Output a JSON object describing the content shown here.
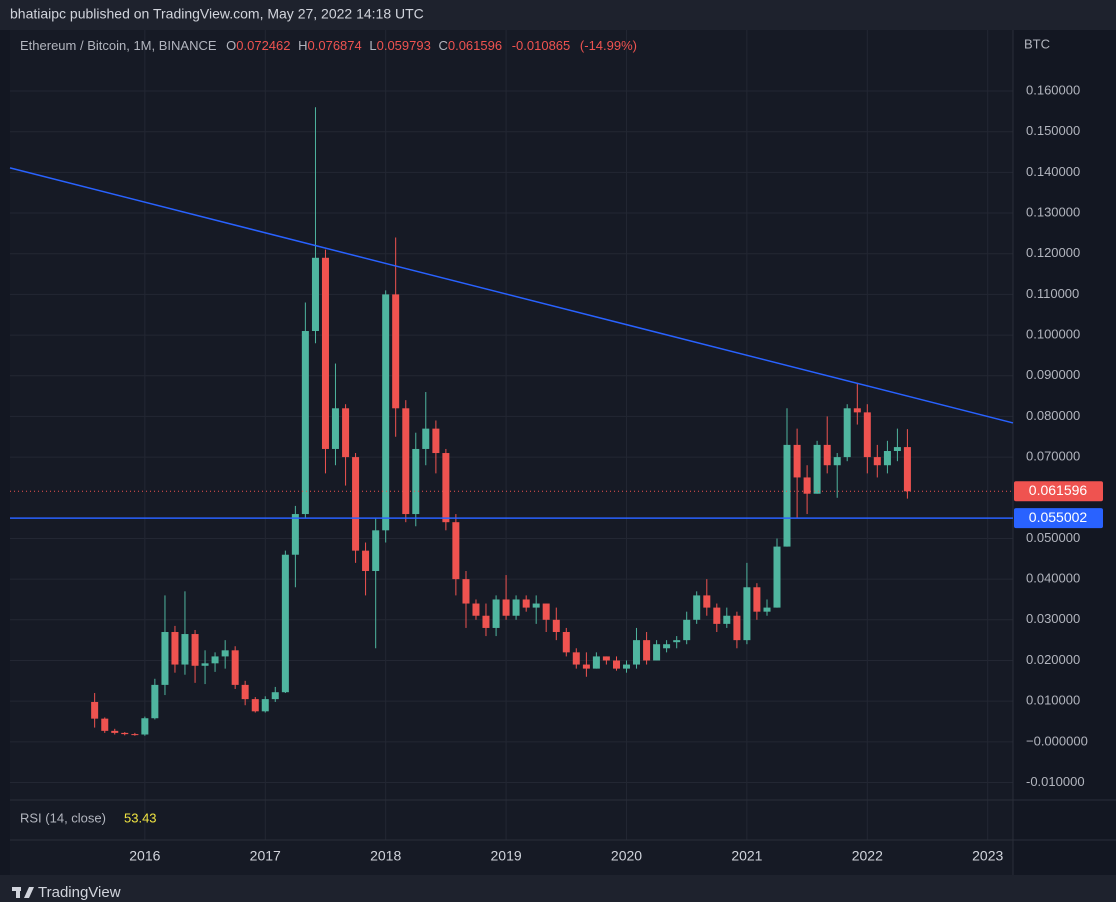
{
  "published": "bhatiaipc published on TradingView.com, May 27, 2022 14:18 UTC",
  "footer": "TradingView",
  "chart_data": {
    "type": "candlestick",
    "title": "Ethereum / Bitcoin, 1M, BINANCE",
    "ohlc_labels": {
      "open": "O",
      "high": "H",
      "low": "L",
      "close": "C"
    },
    "change": -0.010865,
    "change_pct": {
      "value": -14.99,
      "label": "(-14.99%)"
    },
    "y_axis_label": "BTC",
    "up_color": "#4fb59f",
    "down_color": "#ef5350",
    "grid": true,
    "xlim": [
      2014.88,
      2023.21
    ],
    "xticks": [
      2016,
      2017,
      2018,
      2019,
      2020,
      2021,
      2022,
      2023
    ],
    "ylim": [
      -0.0143,
      0.175
    ],
    "yticks": [
      {
        "value": 0.16,
        "label": "0.160000"
      },
      {
        "value": 0.15,
        "label": "0.150000"
      },
      {
        "value": 0.14,
        "label": "0.140000"
      },
      {
        "value": 0.13,
        "label": "0.130000"
      },
      {
        "value": 0.12,
        "label": "0.120000"
      },
      {
        "value": 0.11,
        "label": "0.110000"
      },
      {
        "value": 0.1,
        "label": "0.100000"
      },
      {
        "value": 0.09,
        "label": "0.090000"
      },
      {
        "value": 0.08,
        "label": "0.080000"
      },
      {
        "value": 0.07,
        "label": "0.070000"
      },
      {
        "value": 0.05,
        "label": "0.050000"
      },
      {
        "value": 0.04,
        "label": "0.040000"
      },
      {
        "value": 0.03,
        "label": "0.030000"
      },
      {
        "value": 0.02,
        "label": "0.020000"
      },
      {
        "value": 0.01,
        "label": "0.010000"
      },
      {
        "value": 0,
        "label": "−0.000000"
      },
      {
        "value": -0.01,
        "label": "-0.010000"
      }
    ],
    "candles": {
      "x": [
        2015.583,
        2015.667,
        2015.75,
        2015.833,
        2015.917,
        2016,
        2016.083,
        2016.167,
        2016.25,
        2016.333,
        2016.417,
        2016.5,
        2016.583,
        2016.667,
        2016.75,
        2016.833,
        2016.917,
        2017,
        2017.083,
        2017.167,
        2017.25,
        2017.333,
        2017.417,
        2017.5,
        2017.583,
        2017.667,
        2017.75,
        2017.833,
        2017.917,
        2018,
        2018.083,
        2018.167,
        2018.25,
        2018.333,
        2018.417,
        2018.5,
        2018.583,
        2018.667,
        2018.75,
        2018.833,
        2018.917,
        2019,
        2019.083,
        2019.167,
        2019.25,
        2019.333,
        2019.417,
        2019.5,
        2019.583,
        2019.667,
        2019.75,
        2019.833,
        2019.917,
        2020,
        2020.083,
        2020.167,
        2020.25,
        2020.333,
        2020.417,
        2020.5,
        2020.583,
        2020.667,
        2020.75,
        2020.833,
        2020.917,
        2021,
        2021.083,
        2021.167,
        2021.25,
        2021.333,
        2021.417,
        2021.5,
        2021.583,
        2021.667,
        2021.75,
        2021.833,
        2021.917,
        2022,
        2022.083,
        2022.167,
        2022.25,
        2022.333
      ],
      "open": [
        0.0098,
        0.0057,
        0.0027,
        0.0022,
        0.0019,
        0.0018,
        0.0058,
        0.014,
        0.027,
        0.019,
        0.0265,
        0.0187,
        0.0193,
        0.021,
        0.0225,
        0.014,
        0.0105,
        0.0075,
        0.0105,
        0.0122,
        0.046,
        0.056,
        0.101,
        0.119,
        0.072,
        0.082,
        0.07,
        0.047,
        0.042,
        0.052,
        0.11,
        0.082,
        0.056,
        0.072,
        0.077,
        0.071,
        0.054,
        0.04,
        0.034,
        0.031,
        0.028,
        0.035,
        0.031,
        0.035,
        0.033,
        0.034,
        0.03,
        0.027,
        0.022,
        0.019,
        0.018,
        0.021,
        0.02,
        0.018,
        0.019,
        0.025,
        0.02,
        0.023,
        0.0245,
        0.025,
        0.03,
        0.036,
        0.033,
        0.029,
        0.031,
        0.025,
        0.038,
        0.032,
        0.033,
        0.048,
        0.073,
        0.065,
        0.061,
        0.073,
        0.068,
        0.07,
        0.082,
        0.081,
        0.07,
        0.068,
        0.0715,
        0.072462
      ],
      "high": [
        0.012,
        0.006,
        0.0032,
        0.0024,
        0.0022,
        0.0062,
        0.0155,
        0.036,
        0.0285,
        0.037,
        0.0275,
        0.0225,
        0.022,
        0.025,
        0.0235,
        0.015,
        0.011,
        0.0112,
        0.0135,
        0.047,
        0.058,
        0.108,
        0.156,
        0.121,
        0.093,
        0.083,
        0.071,
        0.049,
        0.055,
        0.111,
        0.124,
        0.084,
        0.076,
        0.086,
        0.079,
        0.072,
        0.056,
        0.042,
        0.035,
        0.034,
        0.036,
        0.041,
        0.036,
        0.036,
        0.036,
        0.034,
        0.033,
        0.028,
        0.023,
        0.022,
        0.022,
        0.021,
        0.021,
        0.02,
        0.028,
        0.027,
        0.025,
        0.025,
        0.026,
        0.032,
        0.037,
        0.04,
        0.034,
        0.033,
        0.032,
        0.044,
        0.039,
        0.035,
        0.05,
        0.082,
        0.077,
        0.068,
        0.074,
        0.08,
        0.071,
        0.083,
        0.088,
        0.083,
        0.073,
        0.074,
        0.077,
        0.076874
      ],
      "low": [
        0.0035,
        0.0022,
        0.0018,
        0.0016,
        0.0015,
        0.0015,
        0.0055,
        0.0115,
        0.017,
        0.0165,
        0.0145,
        0.0142,
        0.0172,
        0.018,
        0.013,
        0.009,
        0.0072,
        0.0072,
        0.0098,
        0.012,
        0.038,
        0.055,
        0.098,
        0.066,
        0.068,
        0.063,
        0.044,
        0.036,
        0.023,
        0.049,
        0.075,
        0.054,
        0.053,
        0.068,
        0.066,
        0.052,
        0.036,
        0.028,
        0.03,
        0.026,
        0.026,
        0.03,
        0.03,
        0.032,
        0.029,
        0.027,
        0.025,
        0.021,
        0.018,
        0.016,
        0.018,
        0.019,
        0.0175,
        0.017,
        0.018,
        0.019,
        0.02,
        0.022,
        0.023,
        0.024,
        0.029,
        0.031,
        0.027,
        0.028,
        0.023,
        0.024,
        0.03,
        0.031,
        0.033,
        0.048,
        0.055,
        0.056,
        0.061,
        0.066,
        0.06,
        0.069,
        0.078,
        0.066,
        0.065,
        0.066,
        0.069,
        0.059793
      ],
      "close": [
        0.0057,
        0.0027,
        0.0022,
        0.0019,
        0.0018,
        0.0058,
        0.014,
        0.027,
        0.019,
        0.0265,
        0.0187,
        0.0193,
        0.021,
        0.0225,
        0.014,
        0.0105,
        0.0075,
        0.0105,
        0.0122,
        0.046,
        0.056,
        0.101,
        0.119,
        0.072,
        0.082,
        0.07,
        0.047,
        0.042,
        0.052,
        0.11,
        0.082,
        0.056,
        0.072,
        0.077,
        0.071,
        0.054,
        0.04,
        0.034,
        0.031,
        0.028,
        0.035,
        0.031,
        0.035,
        0.033,
        0.034,
        0.03,
        0.027,
        0.022,
        0.019,
        0.018,
        0.021,
        0.02,
        0.018,
        0.019,
        0.025,
        0.02,
        0.024,
        0.024,
        0.025,
        0.03,
        0.036,
        0.033,
        0.029,
        0.031,
        0.025,
        0.038,
        0.032,
        0.033,
        0.048,
        0.073,
        0.065,
        0.061,
        0.073,
        0.068,
        0.07,
        0.082,
        0.081,
        0.07,
        0.068,
        0.0715,
        0.072462,
        0.061596
      ]
    },
    "trendline": {
      "x": [
        2014.88,
        2023.21
      ],
      "values": [
        0.1411,
        0.0784
      ],
      "color": "#2962ff"
    },
    "levels": [
      {
        "value": 0.055002,
        "color": "#2962ff"
      }
    ],
    "rsi": {
      "label": "RSI (14, close)",
      "value": 53.43
    }
  }
}
